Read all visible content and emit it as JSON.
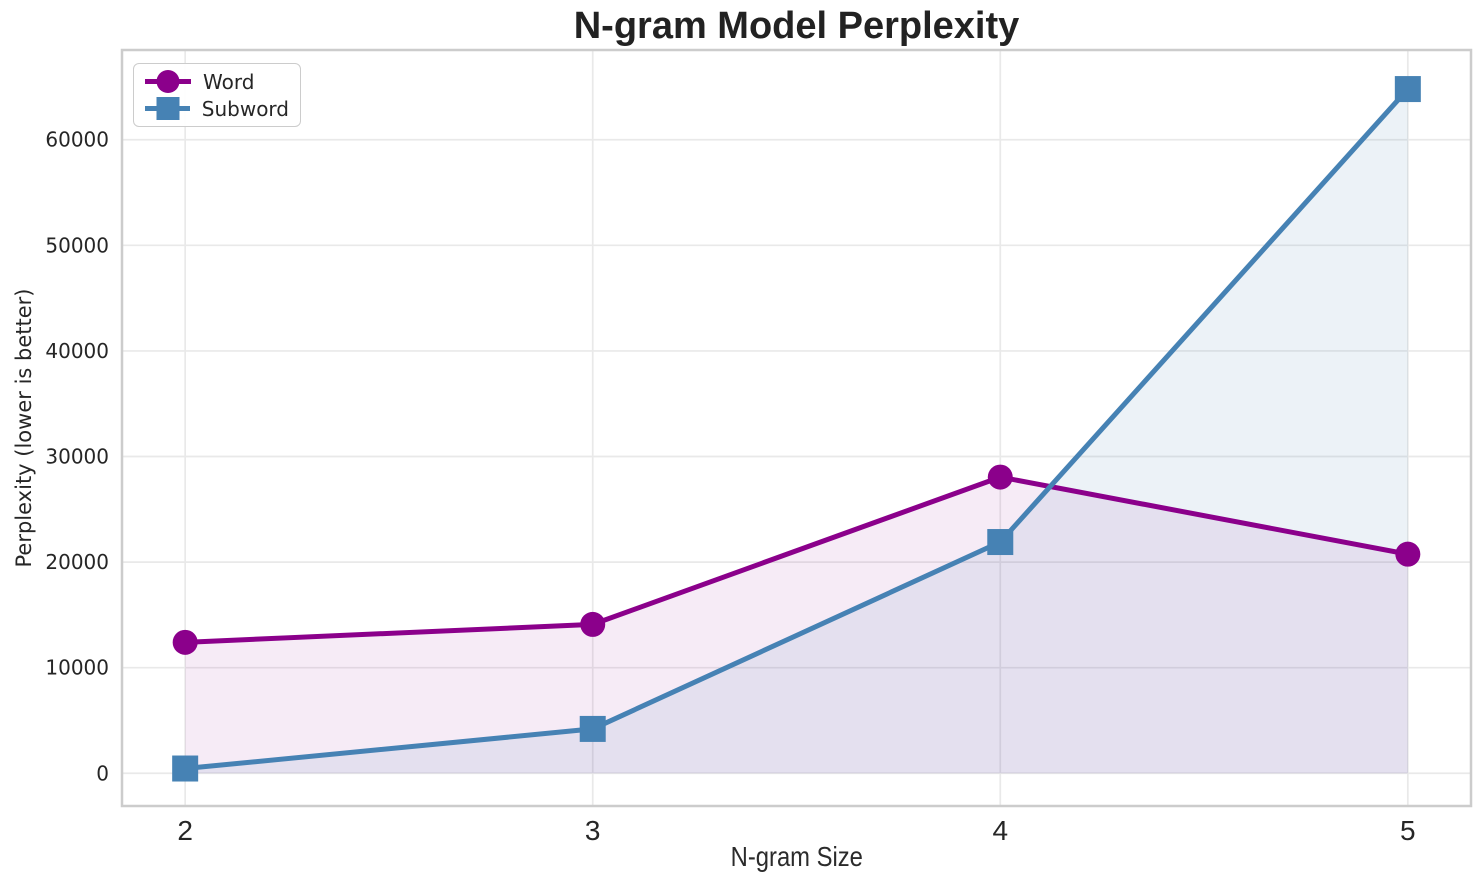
{
  "title": "N-gram Model Perplexity",
  "colors": {
    "word": "#8B008B",
    "subword": "#4682B4",
    "grid": "#e9e9e9",
    "spine": "#cccccc",
    "text": "#262626"
  },
  "legend": {
    "position": "upper left",
    "items": [
      "Word",
      "Subword"
    ]
  },
  "chart_data": {
    "type": "line",
    "title": "N-gram Model Perplexity",
    "xlabel": "N-gram Size",
    "ylabel": "Perplexity (lower is better)",
    "x": [
      2,
      3,
      4,
      5
    ],
    "series": [
      {
        "name": "Word",
        "color": "#8B008B",
        "marker": "circle",
        "values": [
          12400,
          14100,
          28050,
          20750
        ],
        "fill_to_zero": true,
        "fill_opacity": 0.08
      },
      {
        "name": "Subword",
        "color": "#4682B4",
        "marker": "square",
        "values": [
          450,
          4200,
          21900,
          64800
        ],
        "fill_to_zero": true,
        "fill_opacity": 0.1
      }
    ],
    "xticks": [
      2,
      3,
      4,
      5
    ],
    "yticks": [
      0,
      10000,
      20000,
      30000,
      40000,
      50000,
      60000
    ],
    "xlim": [
      1.845,
      5.155
    ],
    "ylim": [
      -3100,
      68500
    ],
    "grid": true,
    "legend_position": "upper left"
  }
}
